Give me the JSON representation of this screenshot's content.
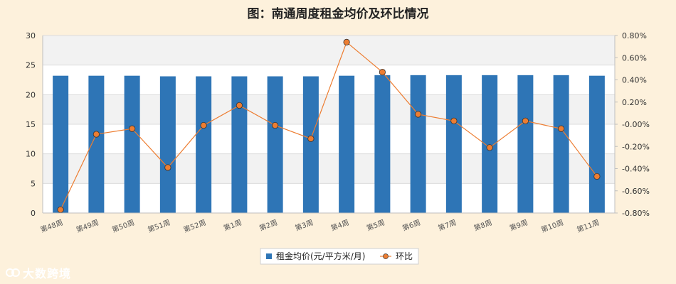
{
  "chart_data": {
    "type": "bar",
    "title": "图：南通周度租金均价及环比情况",
    "categories": [
      "第48周",
      "第49周",
      "第50周",
      "第51周",
      "第52周",
      "第1周",
      "第2周",
      "第3周",
      "第4周",
      "第5周",
      "第6周",
      "第7周",
      "第8周",
      "第9周",
      "第10周",
      "第11周"
    ],
    "series": [
      {
        "name": "租金均价(元/平方米/月)",
        "type": "bar",
        "axis": "left",
        "color": "#2e75b6",
        "values": [
          23.2,
          23.2,
          23.2,
          23.1,
          23.1,
          23.1,
          23.1,
          23.1,
          23.2,
          23.3,
          23.3,
          23.3,
          23.3,
          23.3,
          23.3,
          23.2
        ]
      },
      {
        "name": "环比",
        "type": "line",
        "axis": "right",
        "color": "#ed7d31",
        "values": [
          -0.77,
          -0.09,
          -0.04,
          -0.39,
          -0.01,
          0.17,
          -0.01,
          -0.13,
          0.74,
          0.47,
          0.09,
          0.03,
          -0.21,
          0.03,
          -0.04,
          -0.47
        ]
      }
    ],
    "ylim_left": [
      0,
      30
    ],
    "yticks_left": [
      "0",
      "5",
      "10",
      "15",
      "20",
      "25",
      "30"
    ],
    "ylim_right": [
      -0.8,
      0.8
    ],
    "yticks_right": [
      "-0.80%",
      "-0.60%",
      "-0.40%",
      "-0.20%",
      "-0.00%",
      "0.20%",
      "0.40%",
      "0.60%",
      "0.80%"
    ],
    "grid": true,
    "legend_position": "bottom"
  },
  "brand": {
    "text": "大数跨境",
    "icon": "double-ring-logo-icon"
  }
}
